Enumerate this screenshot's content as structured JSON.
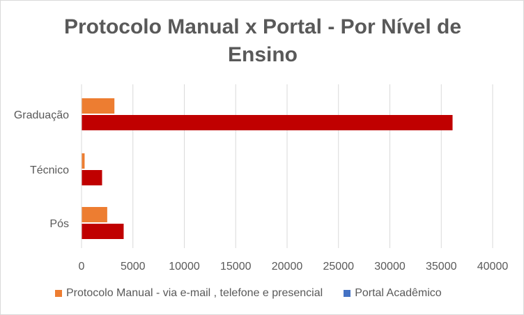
{
  "chart_data": {
    "type": "bar",
    "orientation": "horizontal",
    "title_line1": "Protocolo Manual x Portal - Por Nível de",
    "title_line2": "Ensino",
    "categories": [
      "Graduação",
      "Técnico",
      "Pós"
    ],
    "series": [
      {
        "name": "Protocolo Manual - via e-mail , telefone e presencial",
        "color": "#ed7d31",
        "values": [
          3200,
          300,
          2500
        ]
      },
      {
        "name": "Portal Acadêmico",
        "color": "#c00000",
        "legend_color": "#4472c4",
        "values": [
          36100,
          2000,
          4100
        ]
      }
    ],
    "xlim": [
      0,
      40000
    ],
    "xticks": [
      "0",
      "5000",
      "10000",
      "15000",
      "20000",
      "25000",
      "30000",
      "35000",
      "40000"
    ],
    "grid": true,
    "legend_position": "bottom"
  }
}
